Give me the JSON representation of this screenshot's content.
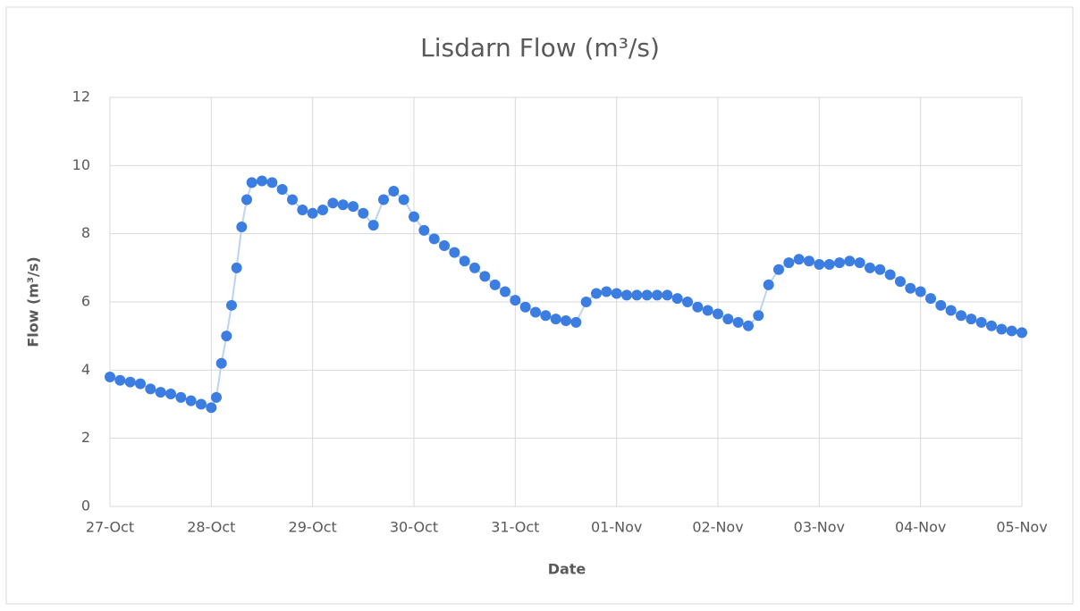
{
  "chart_data": {
    "type": "scatter",
    "title": "Lisdarn Flow (m³/s)",
    "x_label": "Date",
    "y_label": "Flow (m³/s)",
    "color": "#3b7de0",
    "grid": true,
    "xlim": [
      0,
      9
    ],
    "xticks": [
      {
        "value": 0,
        "label": "27-Oct"
      },
      {
        "value": 1,
        "label": "28-Oct"
      },
      {
        "value": 2,
        "label": "29-Oct"
      },
      {
        "value": 3,
        "label": "30-Oct"
      },
      {
        "value": 4,
        "label": "31-Oct"
      },
      {
        "value": 5,
        "label": "01-Nov"
      },
      {
        "value": 6,
        "label": "02-Nov"
      },
      {
        "value": 7,
        "label": "03-Nov"
      },
      {
        "value": 8,
        "label": "04-Nov"
      },
      {
        "value": 9,
        "label": "05-Nov"
      }
    ],
    "ylim": [
      0,
      12
    ],
    "yticks": [
      0,
      2,
      4,
      6,
      8,
      10,
      12
    ],
    "x": [
      0,
      0.1,
      0.2,
      0.3,
      0.4,
      0.5,
      0.6,
      0.7,
      0.8,
      0.9,
      1.0,
      1.05,
      1.1,
      1.15,
      1.2,
      1.25,
      1.3,
      1.35,
      1.4,
      1.5,
      1.6,
      1.7,
      1.8,
      1.9,
      2.0,
      2.1,
      2.2,
      2.3,
      2.4,
      2.5,
      2.6,
      2.7,
      2.8,
      2.9,
      3.0,
      3.1,
      3.2,
      3.3,
      3.4,
      3.5,
      3.6,
      3.7,
      3.8,
      3.9,
      4.0,
      4.1,
      4.2,
      4.3,
      4.4,
      4.5,
      4.6,
      4.7,
      4.8,
      4.9,
      5.0,
      5.1,
      5.2,
      5.3,
      5.4,
      5.5,
      5.6,
      5.7,
      5.8,
      5.9,
      6.0,
      6.1,
      6.2,
      6.3,
      6.4,
      6.5,
      6.6,
      6.7,
      6.8,
      6.9,
      7.0,
      7.1,
      7.2,
      7.3,
      7.4,
      7.5,
      7.6,
      7.7,
      7.8,
      7.9,
      8.0,
      8.1,
      8.2,
      8.3,
      8.4,
      8.5,
      8.6,
      8.7,
      8.8,
      8.9,
      9.0
    ],
    "values": [
      3.8,
      3.7,
      3.65,
      3.6,
      3.45,
      3.35,
      3.3,
      3.2,
      3.1,
      3.0,
      2.9,
      3.2,
      4.2,
      5.0,
      5.9,
      7.0,
      8.2,
      9.0,
      9.5,
      9.55,
      9.5,
      9.3,
      9.0,
      8.7,
      8.6,
      8.7,
      8.9,
      8.85,
      8.8,
      8.6,
      8.25,
      9.0,
      9.25,
      9.0,
      8.5,
      8.1,
      7.85,
      7.65,
      7.45,
      7.2,
      7.0,
      6.75,
      6.5,
      6.3,
      6.05,
      5.85,
      5.7,
      5.6,
      5.5,
      5.45,
      5.4,
      6.0,
      6.25,
      6.3,
      6.25,
      6.2,
      6.2,
      6.2,
      6.2,
      6.2,
      6.1,
      6.0,
      5.85,
      5.75,
      5.65,
      5.5,
      5.4,
      5.3,
      5.6,
      6.5,
      6.95,
      7.15,
      7.25,
      7.2,
      7.1,
      7.1,
      7.15,
      7.2,
      7.15,
      7.0,
      6.95,
      6.8,
      6.6,
      6.4,
      6.3,
      6.1,
      5.9,
      5.75,
      5.6,
      5.5,
      5.4,
      5.3,
      5.2,
      5.15,
      5.1
    ]
  }
}
